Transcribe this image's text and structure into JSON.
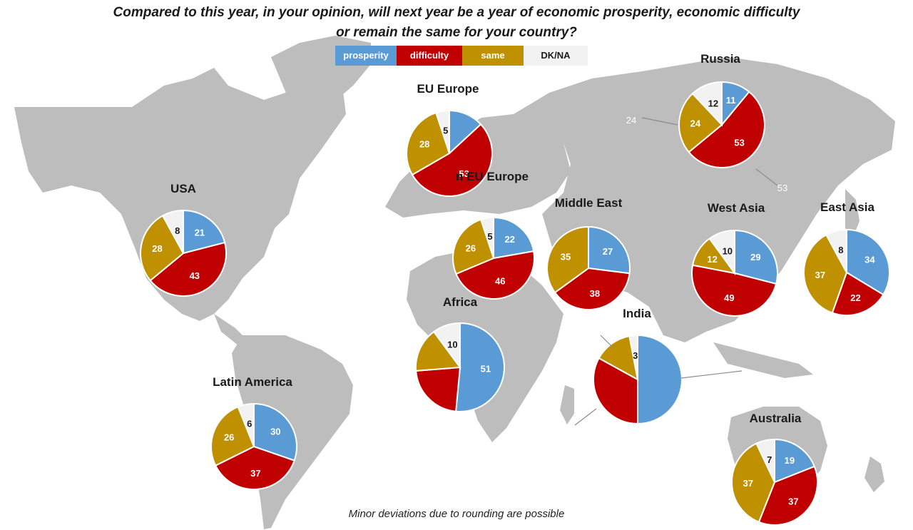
{
  "title_line1": "Compared to this year, in your opinion, will next year be a year of economic prosperity, economic difficulty",
  "title_line2": "or remain the same for your country?",
  "footnote": "Minor deviations due to rounding are possible",
  "colors": {
    "prosperity": "#5b9bd5",
    "difficulty": "#c00000",
    "same": "#bf9000",
    "dkna": "#f2f2f2",
    "land": "#bdbdbd"
  },
  "legend": [
    {
      "key": "prosperity",
      "label": "prosperity"
    },
    {
      "key": "difficulty",
      "label": "difficulty"
    },
    {
      "key": "same",
      "label": "same"
    },
    {
      "key": "dkna",
      "label": "DK/NA"
    }
  ],
  "chart_data": {
    "type": "pie",
    "categories": [
      "prosperity",
      "difficulty",
      "same",
      "DK/NA"
    ],
    "regions": [
      {
        "name": "EU Europe",
        "values": [
          13,
          53,
          28,
          5
        ],
        "labels": [
          "",
          "53",
          "28",
          "5"
        ]
      },
      {
        "name": "Non EU Europe",
        "name_visible": "n EU Europe",
        "values": [
          22,
          46,
          26,
          5
        ],
        "labels": [
          "22",
          "46",
          "26",
          "5"
        ]
      },
      {
        "name": "Russia",
        "values": [
          11,
          53,
          24,
          12
        ],
        "labels": [
          "11",
          "53",
          "24",
          "12"
        ]
      },
      {
        "name": "USA",
        "values": [
          21,
          43,
          28,
          8
        ],
        "labels": [
          "21",
          "43",
          "28",
          "8"
        ]
      },
      {
        "name": "Middle East",
        "values": [
          27,
          38,
          35,
          0
        ],
        "labels": [
          "27",
          "38",
          "35",
          ""
        ]
      },
      {
        "name": "West Asia",
        "values": [
          29,
          49,
          12,
          10
        ],
        "labels": [
          "29",
          "49",
          "12",
          "10"
        ]
      },
      {
        "name": "East Asia",
        "values": [
          34,
          22,
          37,
          8
        ],
        "labels": [
          "34",
          "22",
          "37",
          "8"
        ]
      },
      {
        "name": "Africa",
        "values": [
          51,
          22,
          16,
          10
        ],
        "labels": [
          "51",
          "",
          "",
          "10"
        ]
      },
      {
        "name": "India",
        "values": [
          50,
          33,
          14,
          3
        ],
        "labels": [
          "",
          "",
          "",
          "3"
        ]
      },
      {
        "name": "Latin America",
        "values": [
          30,
          37,
          26,
          6
        ],
        "labels": [
          "30",
          "37",
          "26",
          "6"
        ]
      },
      {
        "name": "Australia",
        "values": [
          19,
          37,
          37,
          7
        ],
        "labels": [
          "19",
          "37",
          "37",
          "7"
        ]
      }
    ]
  }
}
